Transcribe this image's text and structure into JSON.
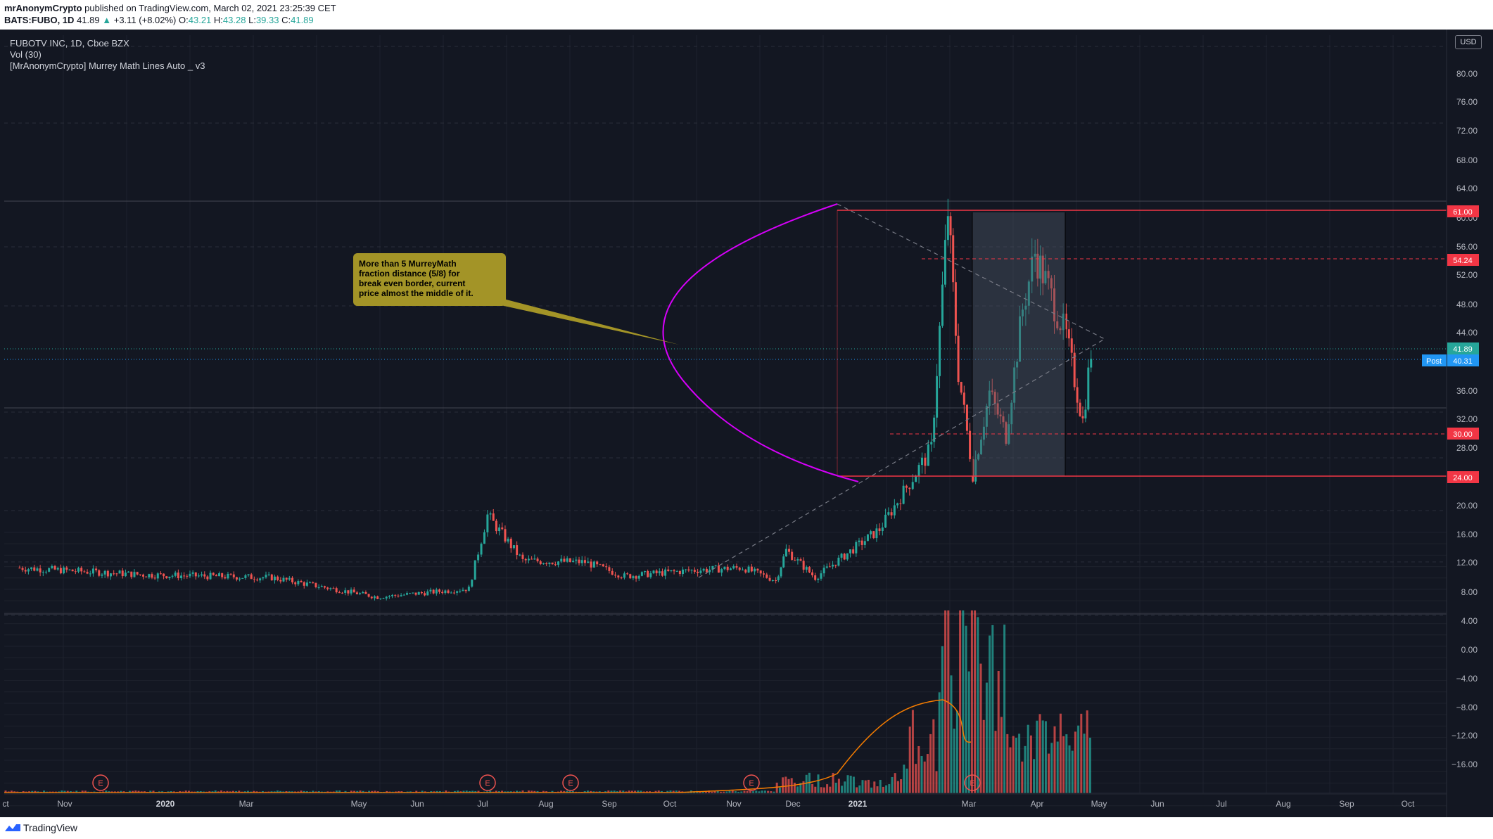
{
  "header": {
    "publisher": "mrAnonymCrypto",
    "published_text": "published on TradingView.com, March 02, 2021 23:25:39 CET",
    "symbol": "BATS:FUBO, 1D",
    "last": "41.89",
    "change": "+3.11 (+8.02%)",
    "open_label": "O:",
    "open": "43.21",
    "high_label": "H:",
    "high": "43.28",
    "low_label": "L:",
    "low": "39.33",
    "close_label": "C:",
    "close": "41.89"
  },
  "legend": {
    "title": "FUBOTV INC, 1D, Cboe BZX",
    "volume": "Vol (30)",
    "indicator": "[MrAnonymCrypto] Murrey Math Lines Auto _ v3"
  },
  "currency": "USD",
  "annotation": {
    "text_lines": [
      "More than 5 MurreyMath",
      "fraction distance (5/8)  for",
      "break even border, current",
      "price almost the middle of it."
    ]
  },
  "footer": {
    "brand": "TradingView"
  },
  "colors": {
    "bg": "#131722",
    "up": "#26a69a",
    "down": "#ef5350",
    "level_red": "#f23645",
    "arc": "#d500f9",
    "callout": "#a39427",
    "post": "#2196f3",
    "volume_ma": "#f57c00"
  },
  "chart_data": {
    "type": "candlestick",
    "price_axis": {
      "ticks": [
        "80.00",
        "76.00",
        "72.00",
        "68.00",
        "64.00",
        "60.00",
        "56.00",
        "52.00",
        "48.00",
        "44.00",
        "40.00",
        "36.00",
        "32.00",
        "28.00",
        "24.00",
        "20.00",
        "16.00",
        "12.00",
        "8.00",
        "4.00",
        "0.00",
        "−4.00",
        "−8.00",
        "−12.00",
        "−16.00"
      ],
      "tick_values": [
        80,
        76,
        72,
        68,
        64,
        60,
        56,
        52,
        48,
        44,
        40,
        36,
        32,
        28,
        24,
        20,
        16,
        12,
        8,
        4,
        0,
        -4,
        -8,
        -12,
        -16
      ]
    },
    "time_axis": {
      "labels": [
        "ct",
        "Nov",
        "2020",
        "Mar",
        "May",
        "Jun",
        "Jul",
        "Aug",
        "Sep",
        "Oct",
        "Nov",
        "Dec",
        "2021",
        "Mar",
        "Apr",
        "May",
        "Jun",
        "Jul",
        "Aug",
        "Sep",
        "Oct"
      ],
      "bold": [
        "2020",
        "2021"
      ]
    },
    "price_labels": [
      {
        "text": "61.00",
        "value": 61.0,
        "kind": "level"
      },
      {
        "text": "54.24",
        "value": 54.24,
        "kind": "level"
      },
      {
        "text": "41.89",
        "value": 41.89,
        "kind": "last"
      },
      {
        "text": "40.31",
        "value": 40.31,
        "kind": "post",
        "tag": "Post"
      },
      {
        "text": "30.00",
        "value": 30.0,
        "kind": "level"
      },
      {
        "text": "24.00",
        "value": 24.0,
        "kind": "level"
      }
    ],
    "earnings_markers": [
      "E",
      "E",
      "E",
      "E",
      "E"
    ],
    "price_path": [
      [
        "2019-10-01",
        11.0
      ],
      [
        "2019-12-01",
        10.0
      ],
      [
        "2020-02-01",
        9.6
      ],
      [
        "2020-03-23",
        6.8
      ],
      [
        "2020-05-06",
        8.0
      ],
      [
        "2020-05-15",
        18.5
      ],
      [
        "2020-06-01",
        12.0
      ],
      [
        "2020-07-01",
        11.8
      ],
      [
        "2020-07-20",
        9.8
      ],
      [
        "2020-08-20",
        10.6
      ],
      [
        "2020-09-15",
        11.0
      ],
      [
        "2020-10-01",
        9.2
      ],
      [
        "2020-10-06",
        13.5
      ],
      [
        "2020-10-20",
        9.6
      ],
      [
        "2020-11-20",
        16.5
      ],
      [
        "2020-12-03",
        22.5
      ],
      [
        "2020-12-15",
        28.0
      ],
      [
        "2020-12-23",
        62.0
      ],
      [
        "2020-12-28",
        39.0
      ],
      [
        "2021-01-04",
        24.5
      ],
      [
        "2021-01-12",
        36.0
      ],
      [
        "2021-01-20",
        30.0
      ],
      [
        "2021-01-28",
        48.0
      ],
      [
        "2021-02-03",
        56.0
      ],
      [
        "2021-02-08",
        52.0
      ],
      [
        "2021-02-18",
        44.0
      ],
      [
        "2021-02-26",
        32.0
      ],
      [
        "2021-03-02",
        41.89
      ]
    ],
    "volume_peak_dates": [
      "2020-12-23",
      "2020-12-30",
      "2021-01-04"
    ]
  }
}
